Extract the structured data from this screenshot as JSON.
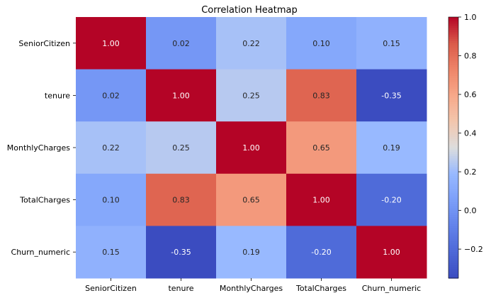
{
  "chart_data": {
    "type": "heatmap",
    "title": "Correlation Heatmap",
    "xlabel": "",
    "ylabel": "",
    "x_categories": [
      "SeniorCitizen",
      "tenure",
      "MonthlyCharges",
      "TotalCharges",
      "Churn_numeric"
    ],
    "y_categories": [
      "SeniorCitizen",
      "tenure",
      "MonthlyCharges",
      "TotalCharges",
      "Churn_numeric"
    ],
    "values": [
      [
        1.0,
        0.02,
        0.22,
        0.1,
        0.15
      ],
      [
        0.02,
        1.0,
        0.25,
        0.83,
        -0.35
      ],
      [
        0.22,
        0.25,
        1.0,
        0.65,
        0.19
      ],
      [
        0.1,
        0.83,
        0.65,
        1.0,
        -0.2
      ],
      [
        0.15,
        -0.35,
        0.19,
        -0.2,
        1.0
      ]
    ],
    "value_format": "0.00",
    "colormap": "coolwarm",
    "color_range": [
      -0.35,
      1.0
    ],
    "colorbar": {
      "ticks": [
        -0.2,
        0.0,
        0.2,
        0.4,
        0.6,
        0.8,
        1.0
      ],
      "tick_labels": [
        "−0.2",
        "0.0",
        "0.2",
        "0.4",
        "0.6",
        "0.8",
        "1.0"
      ],
      "placement": "right"
    },
    "grid": false
  }
}
